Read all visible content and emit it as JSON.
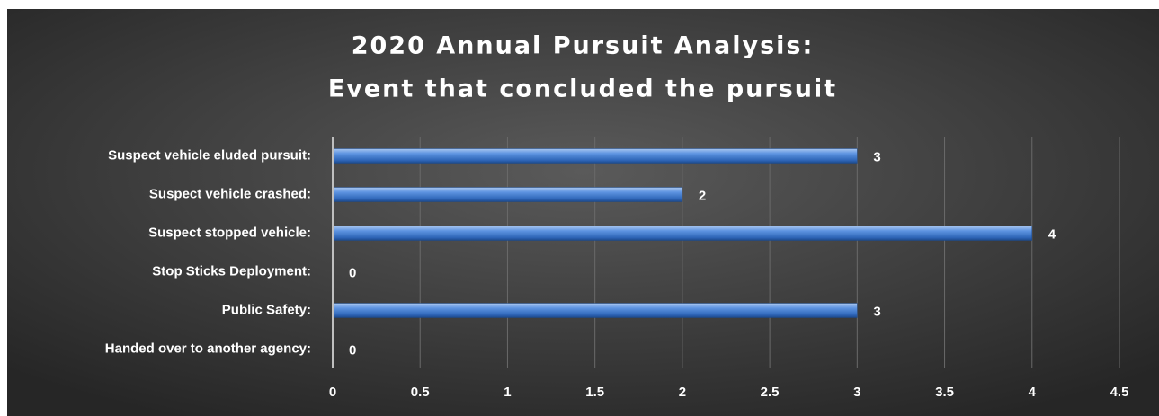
{
  "chart_data": {
    "type": "hbar",
    "title": [
      "2020 Annual Pursuit Analysis:",
      "Event that concluded the pursuit"
    ],
    "categories": [
      "Suspect vehicle eluded pursuit:",
      "Suspect vehicle crashed:",
      "Suspect stopped vehicle:",
      "Stop Sticks Deployment:",
      "Public Safety:",
      "Handed over to another agency:"
    ],
    "values": [
      3,
      2,
      4,
      0,
      3,
      0
    ],
    "color": "#4f86d8",
    "xlim": [
      0,
      4.5
    ],
    "xticks": [
      0,
      0.5,
      1,
      1.5,
      2,
      2.5,
      3,
      3.5,
      4,
      4.5
    ],
    "grid": true
  }
}
